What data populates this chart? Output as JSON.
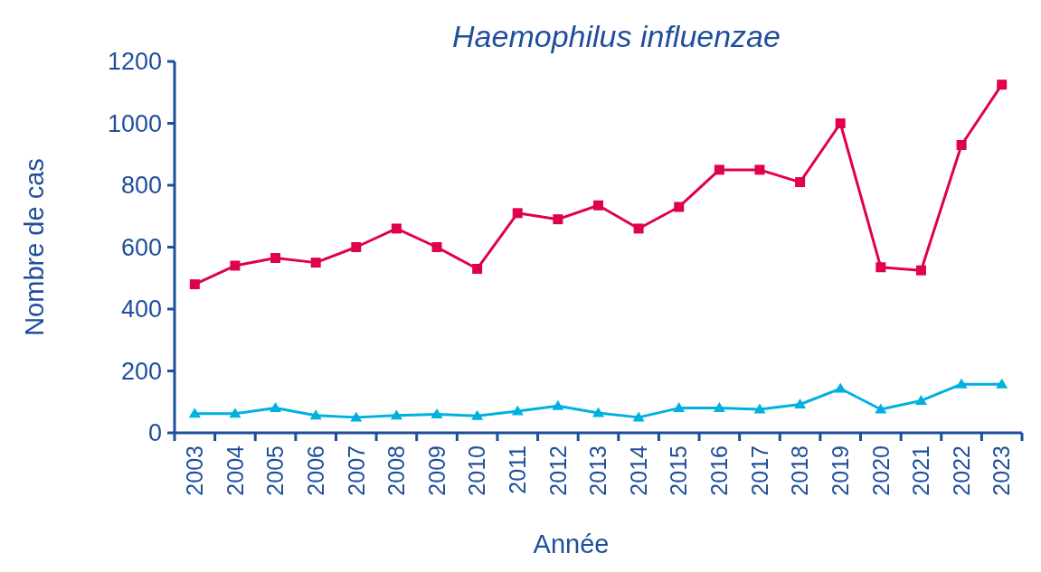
{
  "chart_data": {
    "type": "line",
    "title": "Haemophilus influenzae",
    "xlabel": "Année",
    "ylabel": "Nombre de cas",
    "categories": [
      "2003",
      "2004",
      "2005",
      "2006",
      "2007",
      "2008",
      "2009",
      "2010",
      "2011",
      "2012",
      "2013",
      "2014",
      "2015",
      "2016",
      "2017",
      "2018",
      "2019",
      "2020",
      "2021",
      "2022",
      "2023"
    ],
    "series": [
      {
        "color": "#e0004d",
        "marker": "square",
        "values": [
          480,
          540,
          565,
          550,
          600,
          660,
          600,
          530,
          710,
          690,
          735,
          660,
          730,
          850,
          850,
          810,
          1000,
          535,
          525,
          930,
          1125
        ]
      },
      {
        "color": "#00b0e0",
        "marker": "triangle",
        "values": [
          62,
          62,
          80,
          56,
          50,
          56,
          60,
          55,
          70,
          87,
          64,
          50,
          80,
          80,
          76,
          92,
          143,
          76,
          104,
          157,
          157
        ]
      }
    ],
    "ylim": [
      0,
      1200
    ],
    "yticks": [
      0,
      200,
      400,
      600,
      800,
      1000,
      1200
    ]
  }
}
